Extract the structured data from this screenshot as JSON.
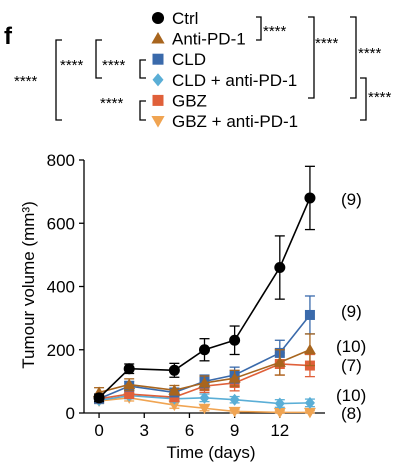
{
  "panel_letter": "f",
  "colors": {
    "Ctrl": "#000000",
    "Anti-PD-1": "#a8651e",
    "CLD": "#3a6aab",
    "CLD + anti-PD-1": "#5aaed6",
    "GBZ": "#e0603a",
    "GBZ + anti-PD-1": "#f0a452"
  },
  "significance": {
    "ctrl_vs_antipd1": "****",
    "ctrl_vs_cld_group": "****",
    "ctrl_vs_gbz_group": "****",
    "gbz_group_right": "****",
    "all_vs_ctrl_left": "****",
    "cld_pd1_vs_left": "****",
    "cld_vs_cld_pd1": "****",
    "gbz_vs_gbz_pd1": "****"
  },
  "chart_data": {
    "type": "line",
    "xlabel": "Time (days)",
    "ylabel": "Tumour volume (mm³)",
    "xlim": [
      -1,
      15
    ],
    "ylim": [
      0,
      800
    ],
    "xticks": [
      0,
      3,
      6,
      9,
      12
    ],
    "yticks": [
      0,
      200,
      400,
      600,
      800
    ],
    "x": [
      0,
      2,
      5,
      7,
      9,
      12,
      14
    ],
    "series": [
      {
        "name": "Ctrl",
        "marker": "circle",
        "values": [
          48,
          140,
          135,
          200,
          230,
          460,
          680
        ],
        "errors": [
          12,
          15,
          22,
          35,
          45,
          100,
          100
        ],
        "n_label": "(9)"
      },
      {
        "name": "Anti-PD-1",
        "marker": "triangle-up",
        "values": [
          65,
          90,
          72,
          95,
          110,
          160,
          200
        ],
        "errors": [
          15,
          18,
          15,
          22,
          25,
          40,
          50
        ],
        "n_label": "(10)"
      },
      {
        "name": "CLD",
        "marker": "square",
        "values": [
          45,
          85,
          65,
          100,
          120,
          190,
          310
        ],
        "errors": [
          10,
          15,
          12,
          20,
          25,
          40,
          60
        ],
        "n_label": "(9)"
      },
      {
        "name": "CLD + anti-PD-1",
        "marker": "diamond",
        "values": [
          40,
          55,
          45,
          48,
          42,
          30,
          32
        ],
        "errors": [
          10,
          10,
          10,
          12,
          10,
          12,
          12
        ],
        "n_label": "(10)"
      },
      {
        "name": "GBZ",
        "marker": "square",
        "values": [
          45,
          60,
          50,
          85,
          95,
          155,
          150
        ],
        "errors": [
          10,
          12,
          10,
          20,
          25,
          35,
          35
        ],
        "n_label": "(7)"
      },
      {
        "name": "GBZ + anti-PD-1",
        "marker": "triangle-down",
        "values": [
          38,
          48,
          25,
          15,
          5,
          2,
          2
        ],
        "errors": [
          8,
          10,
          10,
          8,
          5,
          5,
          5
        ],
        "n_label": "(8)"
      }
    ]
  }
}
